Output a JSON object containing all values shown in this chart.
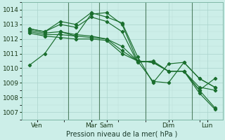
{
  "xlabel": "Pression niveau de la mer( hPa )",
  "bg_color": "#cceee8",
  "grid_color_major": "#aad4cc",
  "grid_color_minor": "#bbddd8",
  "line_color": "#1a6e2e",
  "vline_color": "#336644",
  "ylim": [
    1006.5,
    1014.5
  ],
  "yticks": [
    1007,
    1008,
    1009,
    1010,
    1011,
    1012,
    1013,
    1014
  ],
  "xlim": [
    -0.5,
    12.5
  ],
  "xtick_positions": [
    0.5,
    4,
    5,
    9,
    11.5
  ],
  "xtick_labels": [
    "Ven",
    "Mar",
    "Sam",
    "Dim",
    "Lun"
  ],
  "vline_positions": [
    2.5,
    4.5,
    7.5,
    10.5
  ],
  "num_points": 13,
  "series": [
    [
      1010.2,
      1011.0,
      1012.5,
      1012.2,
      1013.7,
      1013.8,
      1013.0,
      1010.5,
      1009.1,
      1009.0,
      1010.4,
      1009.3,
      1008.7
    ],
    [
      1012.7,
      1012.5,
      1013.2,
      1013.0,
      1013.8,
      1013.5,
      1013.1,
      1010.8,
      1009.0,
      1010.3,
      1010.4,
      1009.3,
      1008.7
    ],
    [
      1012.7,
      1012.5,
      1013.0,
      1012.8,
      1013.5,
      1013.2,
      1012.5,
      1010.4,
      1010.5,
      1009.8,
      1009.8,
      1008.5,
      1007.3
    ],
    [
      1012.6,
      1012.4,
      1012.5,
      1012.3,
      1012.2,
      1012.0,
      1011.5,
      1010.5,
      1010.4,
      1009.8,
      1009.8,
      1008.3,
      1007.2
    ],
    [
      1012.5,
      1012.3,
      1012.3,
      1012.2,
      1012.1,
      1012.0,
      1011.2,
      1010.5,
      1010.4,
      1009.8,
      1009.8,
      1008.5,
      1009.3
    ],
    [
      1012.4,
      1012.2,
      1012.1,
      1012.0,
      1012.0,
      1011.9,
      1011.0,
      1010.5,
      1010.4,
      1009.8,
      1009.8,
      1008.7,
      1008.5
    ]
  ]
}
